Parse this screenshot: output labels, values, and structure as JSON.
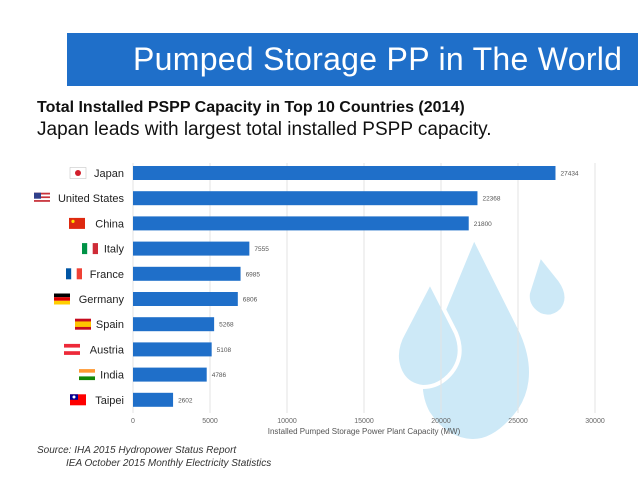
{
  "banner": {
    "title": "Pumped Storage PP in The World"
  },
  "heading": "Total Installed PSPP Capacity in Top 10 Countries (2014)",
  "subheading": "Japan leads with largest total installed PSPP capacity.",
  "chart_data": {
    "type": "bar",
    "orientation": "horizontal",
    "title": "Total Installed PSPP Capacity in Top 10 Countries (2014)",
    "xlabel": "Installed Pumped Storage Power Plant Capacity (MW)",
    "ylabel": "",
    "xlim": [
      0,
      30000
    ],
    "xticks": [
      0,
      5000,
      10000,
      15000,
      20000,
      25000,
      30000
    ],
    "categories": [
      "Japan",
      "United States",
      "China",
      "Italy",
      "France",
      "Germany",
      "Spain",
      "Austria",
      "India",
      "Taipei"
    ],
    "values": [
      27434,
      22368,
      21800,
      7555,
      6985,
      6806,
      5268,
      5108,
      4786,
      2602
    ],
    "bar_color": "#1f6fc9"
  },
  "source": {
    "line1": "Source: IHA 2015 Hydropower Status Report",
    "line2": "IEA October 2015 Monthly Electricity Statistics"
  },
  "colors": {
    "banner": "#1f6fc9",
    "drop_fill": "#cde9f7",
    "drop_stroke": "#ffffff"
  }
}
